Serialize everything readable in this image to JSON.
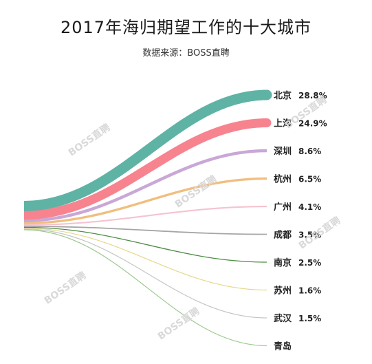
{
  "title": "2017年海归期望工作的十大城市",
  "subtitle": "数据来源：BOSS直聘",
  "watermark": "BOSS直聘",
  "chart_data": {
    "type": "sankey",
    "title": "2017年海归期望工作的十大城市",
    "subtitle": "数据来源：BOSS直聘",
    "unit": "%",
    "categories": [
      "北京",
      "上海",
      "深圳",
      "杭州",
      "广州",
      "成都",
      "南京",
      "苏州",
      "武汉",
      "青岛"
    ],
    "values": [
      28.8,
      24.9,
      8.6,
      6.5,
      4.1,
      3.5,
      2.5,
      1.6,
      1.5,
      null
    ],
    "value_labels": [
      "28.8%",
      "24.9%",
      "8.6%",
      "6.5%",
      "4.1%",
      "3.5%",
      "2.5%",
      "1.6%",
      "1.5%",
      ""
    ],
    "colors": [
      "#5fb3a4",
      "#f7838f",
      "#c9a7d6",
      "#f1be7e",
      "#f5c3d0",
      "#a6a6a6",
      "#4e8c45",
      "#e6d78a",
      "#c5c5c5",
      "#9dc98f"
    ]
  }
}
